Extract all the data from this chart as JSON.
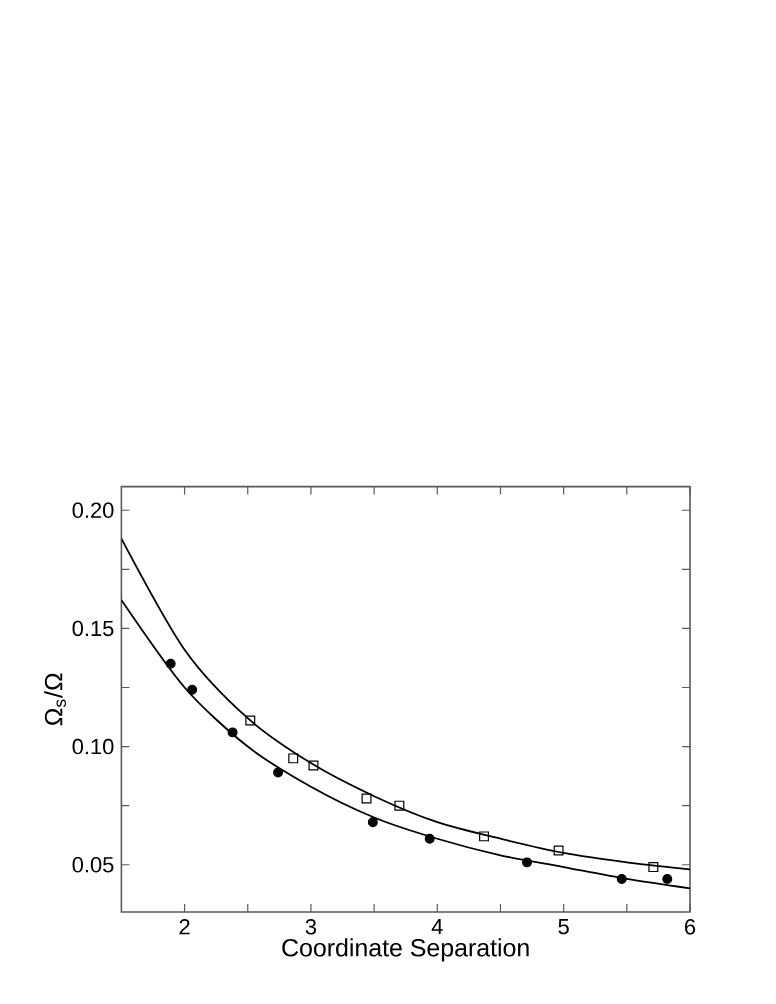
{
  "chart_data": {
    "type": "scatter",
    "xlabel": "Coordinate Separation",
    "ylabel": "Ω$_{s}$/Ω",
    "xlim": [
      1.5,
      6
    ],
    "ylim": [
      0.03,
      0.21
    ],
    "xticks": [
      2,
      {
        "value": 2.5,
        "label": null
      },
      3,
      {
        "value": 3.5,
        "label": null
      },
      4,
      {
        "value": 4.5,
        "label": null
      },
      5,
      {
        "value": 5.5,
        "label": null
      },
      6
    ],
    "yticks": [
      0.05,
      {
        "value": 0.075,
        "label": null
      },
      {
        "value": 0.1,
        "label": "0.10"
      },
      {
        "value": 0.125,
        "label": null
      },
      0.15,
      {
        "value": 0.175,
        "label": null
      },
      {
        "value": 0.2,
        "label": "0.20"
      }
    ],
    "grid": false,
    "series": [
      {
        "marker": "circle",
        "color": "#000000",
        "x": [
          1.89,
          2.06,
          2.38,
          2.74,
          3.49,
          3.94,
          4.71,
          5.46,
          5.82
        ],
        "values": [
          0.135,
          0.124,
          0.106,
          0.089,
          0.068,
          0.061,
          0.051,
          0.044,
          0.044
        ]
      },
      {
        "marker": "square",
        "color": "#000000",
        "x": [
          2.52,
          2.86,
          3.02,
          3.44,
          3.7,
          4.37,
          4.96,
          5.71
        ],
        "values": [
          0.111,
          0.095,
          0.092,
          0.078,
          0.075,
          0.062,
          0.056,
          0.049
        ]
      },
      {
        "type": "line",
        "marker": "none",
        "color": "#000000",
        "x": [
          1.5,
          2,
          2.5,
          3,
          3.5,
          4,
          4.5,
          5,
          5.5,
          6
        ],
        "values": [
          0.188,
          0.141,
          0.112,
          0.093,
          0.079,
          0.068,
          0.061,
          0.055,
          0.051,
          0.048
        ]
      },
      {
        "type": "line",
        "marker": "none",
        "color": "#000000",
        "x": [
          1.5,
          2,
          2.5,
          3,
          3.5,
          4,
          4.5,
          5,
          5.5,
          6
        ],
        "values": [
          0.162,
          0.125,
          0.1,
          0.083,
          0.07,
          0.061,
          0.054,
          0.049,
          0.044,
          0.04
        ]
      }
    ]
  }
}
